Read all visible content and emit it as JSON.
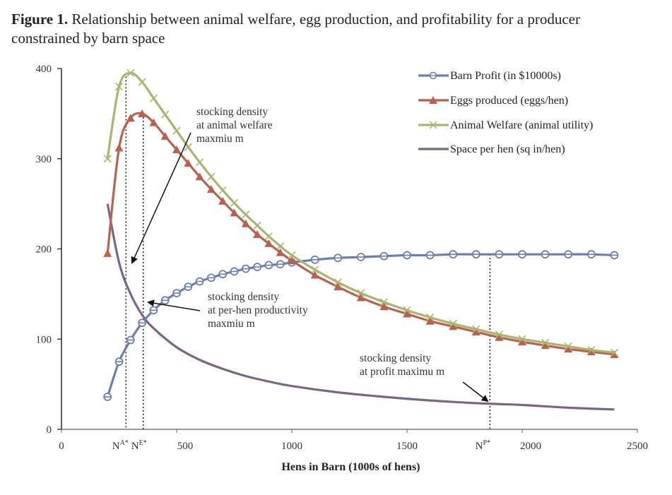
{
  "caption": {
    "label": "Figure 1.",
    "text": " Relationship between animal welfare, egg production, and profitability for a producer constrained by barn space"
  },
  "chart_data": {
    "type": "line",
    "title": "Relationship between animal welfare, egg production, and profitability for a producer constrained by barn space",
    "xlabel": "Hens in Barn (1000s of hens)",
    "ylabel": "",
    "xlim": [
      0,
      2500
    ],
    "ylim": [
      0,
      400
    ],
    "x_ticks": [
      0,
      500,
      1000,
      1500,
      2000,
      2500
    ],
    "x_tick_labels": [
      "0",
      "500",
      "1000",
      "1500",
      "2000",
      "2500"
    ],
    "y_ticks": [
      0,
      100,
      200,
      300,
      400
    ],
    "y_tick_labels": [
      "0",
      "100",
      "200",
      "300",
      "400"
    ],
    "grid": false,
    "legend_position": "top-right",
    "colors": {
      "profit": "#6A7FAF",
      "eggs": "#B9604F",
      "welfare": "#A9B56F",
      "space": "#7B6585"
    },
    "series": [
      {
        "name": "Barn Profit (in $10000s)",
        "key": "profit",
        "marker": "circle",
        "x": [
          200,
          250,
          300,
          350,
          400,
          450,
          500,
          550,
          600,
          650,
          700,
          750,
          800,
          850,
          900,
          950,
          1000,
          1100,
          1200,
          1300,
          1400,
          1500,
          1600,
          1700,
          1800,
          1900,
          2000,
          2100,
          2200,
          2300,
          2400
        ],
        "y": [
          36,
          75,
          99,
          118,
          132,
          143,
          151,
          158,
          164,
          168,
          172,
          175,
          178,
          180,
          182,
          183,
          185,
          188,
          190,
          191,
          192,
          193,
          193,
          194,
          194,
          194,
          194,
          194,
          194,
          194,
          193
        ]
      },
      {
        "name": "Eggs produced (eggs/hen)",
        "key": "eggs",
        "marker": "triangle",
        "x": [
          200,
          250,
          300,
          350,
          400,
          450,
          500,
          550,
          600,
          650,
          700,
          750,
          800,
          850,
          900,
          950,
          1000,
          1100,
          1200,
          1300,
          1400,
          1500,
          1600,
          1700,
          1800,
          1900,
          2000,
          2100,
          2200,
          2300,
          2400
        ],
        "y": [
          195,
          312,
          345,
          350,
          340,
          325,
          310,
          295,
          280,
          266,
          253,
          240,
          228,
          216,
          206,
          196,
          187,
          171,
          158,
          146,
          136,
          128,
          120,
          114,
          108,
          102,
          97,
          93,
          89,
          86,
          83
        ]
      },
      {
        "name": "Animal Welfare (animal utility)",
        "key": "welfare",
        "marker": "x",
        "x": [
          200,
          250,
          300,
          350,
          400,
          450,
          500,
          550,
          600,
          650,
          700,
          750,
          800,
          850,
          900,
          950,
          1000,
          1100,
          1200,
          1300,
          1400,
          1500,
          1600,
          1700,
          1800,
          1900,
          2000,
          2100,
          2200,
          2300,
          2400
        ],
        "y": [
          300,
          380,
          395,
          385,
          367,
          349,
          331,
          313,
          296,
          280,
          265,
          251,
          238,
          226,
          214,
          203,
          193,
          177,
          163,
          151,
          141,
          132,
          124,
          117,
          111,
          105,
          100,
          96,
          92,
          88,
          85
        ]
      },
      {
        "name": "Space per hen (sq in/hen)",
        "key": "space",
        "marker": "none",
        "x": [
          200,
          250,
          300,
          350,
          400,
          500,
          600,
          700,
          800,
          900,
          1000,
          1200,
          1400,
          1600,
          1800,
          1900,
          2000,
          2200,
          2400
        ],
        "y": [
          250,
          185,
          150,
          127,
          112,
          91,
          77,
          67,
          59,
          53,
          48,
          41,
          36,
          32,
          29,
          28,
          27,
          24,
          22
        ]
      }
    ],
    "markers": [
      {
        "label": "N",
        "sup": "A*",
        "x": 280
      },
      {
        "label": "N",
        "sup": "E*",
        "x": 355
      },
      {
        "label": "N",
        "sup": "P*",
        "x": 1860
      }
    ],
    "annotations": [
      {
        "lines": [
          "stocking density",
          "at animal  welfare",
          "maxmiu m"
        ]
      },
      {
        "lines": [
          "stocking density",
          "at per-hen productivity",
          "maxmiu m"
        ]
      },
      {
        "lines": [
          "stocking density",
          "at profit maximu m"
        ]
      }
    ]
  }
}
